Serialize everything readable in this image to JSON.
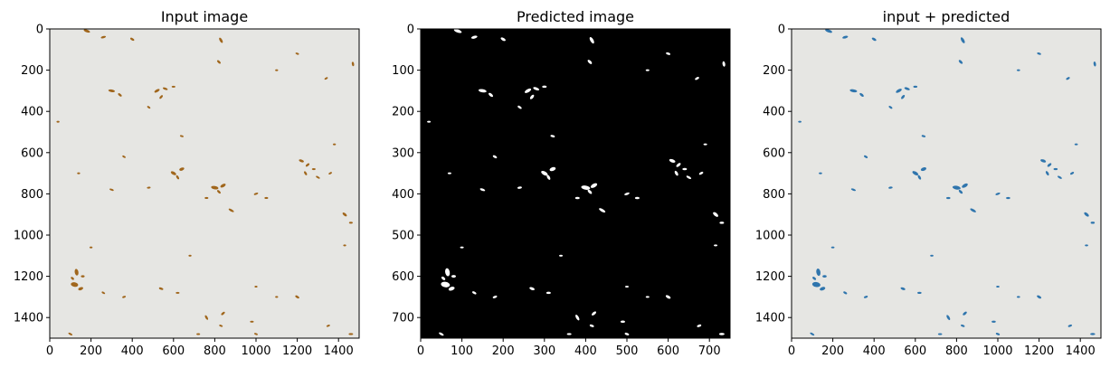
{
  "chart_data": [
    {
      "type": "image",
      "title": "Input image",
      "x_ticks": [
        0,
        200,
        400,
        600,
        800,
        1000,
        1200,
        1400
      ],
      "y_ticks": [
        0,
        200,
        400,
        600,
        800,
        1000,
        1200,
        1400
      ],
      "xlim": [
        0,
        1500
      ],
      "ylim": [
        1500,
        0
      ],
      "background_color": "#e6e6e3",
      "mark_color": "#a0661c",
      "marks_description": "scattered small brown seed-like particles on light background"
    },
    {
      "type": "image",
      "title": "Predicted image",
      "x_ticks": [
        0,
        100,
        200,
        300,
        400,
        500,
        600,
        700
      ],
      "y_ticks": [
        0,
        100,
        200,
        300,
        400,
        500,
        600,
        700
      ],
      "xlim": [
        0,
        750
      ],
      "ylim": [
        750,
        0
      ],
      "background_color": "#000000",
      "mark_color": "#ffffff",
      "marks_description": "binary segmentation mask with white blobs on black"
    },
    {
      "type": "image",
      "title": "input + predicted",
      "x_ticks": [
        0,
        200,
        400,
        600,
        800,
        1000,
        1200,
        1400
      ],
      "y_ticks": [
        0,
        200,
        400,
        600,
        800,
        1000,
        1200,
        1400
      ],
      "xlim": [
        0,
        1500
      ],
      "ylim": [
        1500,
        0
      ],
      "background_color": "#e6e6e3",
      "mark_color": "#2f75ad",
      "marks_description": "input image with predicted regions overlaid in blue"
    }
  ],
  "particles": [
    [
      180,
      10,
      18,
      7,
      20
    ],
    [
      260,
      40,
      14,
      6,
      -15
    ],
    [
      400,
      50,
      12,
      6,
      30
    ],
    [
      830,
      55,
      16,
      7,
      60
    ],
    [
      1470,
      170,
      12,
      6,
      80
    ],
    [
      300,
      300,
      18,
      7,
      10
    ],
    [
      340,
      320,
      12,
      6,
      40
    ],
    [
      520,
      300,
      16,
      7,
      -30
    ],
    [
      560,
      290,
      14,
      6,
      20
    ],
    [
      540,
      330,
      12,
      6,
      -50
    ],
    [
      600,
      280,
      10,
      5,
      0
    ],
    [
      480,
      380,
      10,
      5,
      35
    ],
    [
      820,
      160,
      12,
      6,
      45
    ],
    [
      1200,
      120,
      10,
      5,
      20
    ],
    [
      1340,
      240,
      10,
      5,
      -30
    ],
    [
      1100,
      200,
      8,
      4,
      0
    ],
    [
      640,
      520,
      10,
      5,
      15
    ],
    [
      600,
      700,
      16,
      8,
      30
    ],
    [
      640,
      680,
      14,
      8,
      -20
    ],
    [
      620,
      720,
      12,
      6,
      60
    ],
    [
      800,
      770,
      20,
      9,
      10
    ],
    [
      840,
      760,
      16,
      8,
      -30
    ],
    [
      820,
      790,
      12,
      6,
      45
    ],
    [
      760,
      820,
      10,
      5,
      0
    ],
    [
      880,
      880,
      16,
      6,
      30
    ],
    [
      1000,
      800,
      12,
      5,
      -20
    ],
    [
      1050,
      820,
      10,
      5,
      0
    ],
    [
      1220,
      640,
      14,
      7,
      20
    ],
    [
      1250,
      660,
      12,
      6,
      -40
    ],
    [
      1240,
      700,
      12,
      6,
      60
    ],
    [
      1280,
      680,
      10,
      5,
      0
    ],
    [
      1300,
      720,
      12,
      5,
      30
    ],
    [
      1360,
      700,
      10,
      5,
      -30
    ],
    [
      1430,
      900,
      14,
      7,
      40
    ],
    [
      1460,
      940,
      10,
      5,
      0
    ],
    [
      300,
      780,
      12,
      5,
      20
    ],
    [
      480,
      770,
      10,
      5,
      -10
    ],
    [
      140,
      700,
      8,
      4,
      0
    ],
    [
      360,
      620,
      10,
      5,
      30
    ],
    [
      1380,
      560,
      8,
      4,
      0
    ],
    [
      130,
      1180,
      18,
      10,
      80
    ],
    [
      120,
      1240,
      20,
      12,
      10
    ],
    [
      150,
      1260,
      14,
      8,
      -20
    ],
    [
      110,
      1210,
      10,
      6,
      40
    ],
    [
      160,
      1200,
      10,
      6,
      0
    ],
    [
      260,
      1280,
      10,
      5,
      30
    ],
    [
      360,
      1300,
      10,
      5,
      -20
    ],
    [
      540,
      1260,
      12,
      6,
      20
    ],
    [
      620,
      1280,
      10,
      5,
      0
    ],
    [
      760,
      1400,
      14,
      6,
      60
    ],
    [
      840,
      1380,
      12,
      6,
      -40
    ],
    [
      830,
      1440,
      10,
      5,
      20
    ],
    [
      980,
      1420,
      10,
      5,
      0
    ],
    [
      1200,
      1300,
      12,
      6,
      30
    ],
    [
      1350,
      1440,
      10,
      5,
      -20
    ],
    [
      1460,
      1480,
      12,
      5,
      0
    ],
    [
      1000,
      1480,
      10,
      5,
      20
    ],
    [
      720,
      1480,
      10,
      4,
      0
    ],
    [
      100,
      1480,
      12,
      5,
      30
    ],
    [
      40,
      450,
      8,
      4,
      0
    ],
    [
      1000,
      1250,
      8,
      4,
      0
    ],
    [
      1100,
      1300,
      8,
      4,
      0
    ],
    [
      680,
      1100,
      8,
      4,
      0
    ],
    [
      200,
      1060,
      8,
      4,
      0
    ],
    [
      1430,
      1050,
      8,
      4,
      0
    ]
  ]
}
